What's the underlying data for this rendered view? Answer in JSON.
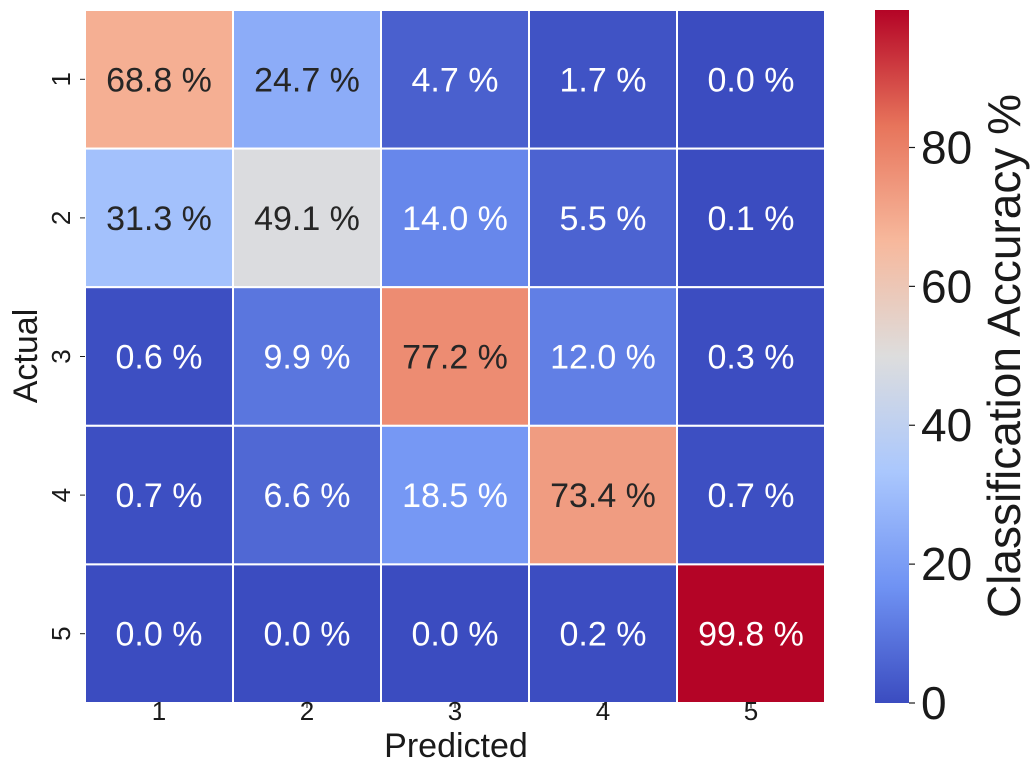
{
  "chart_data": {
    "type": "heatmap",
    "title": "",
    "xlabel": "Predicted",
    "ylabel": "Actual",
    "x_categories": [
      "1",
      "2",
      "3",
      "4",
      "5"
    ],
    "y_categories": [
      "1",
      "2",
      "3",
      "4",
      "5"
    ],
    "values": [
      [
        68.8,
        24.7,
        4.7,
        1.7,
        0.0
      ],
      [
        31.3,
        49.1,
        14.0,
        5.5,
        0.1
      ],
      [
        0.6,
        9.9,
        77.2,
        12.0,
        0.3
      ],
      [
        0.7,
        6.6,
        18.5,
        73.4,
        0.7
      ],
      [
        0.0,
        0.0,
        0.0,
        0.2,
        99.8
      ]
    ],
    "cell_labels": [
      [
        "68.8 %",
        "24.7 %",
        "4.7 %",
        "1.7 %",
        "0.0 %"
      ],
      [
        "31.3 %",
        "49.1 %",
        "14.0 %",
        "5.5 %",
        "0.1 %"
      ],
      [
        "0.6 %",
        "9.9 %",
        "77.2 %",
        "12.0 %",
        "0.3 %"
      ],
      [
        "0.7 %",
        "6.6 %",
        "18.5 %",
        "73.4 %",
        "0.7 %"
      ],
      [
        "0.0 %",
        "0.0 %",
        "0.0 %",
        "0.2 %",
        "99.8 %"
      ]
    ],
    "colormap": "coolwarm",
    "colormap_stops": [
      "#3b4cc0",
      "#6f92f3",
      "#aac7fd",
      "#dddddd",
      "#f7b89c",
      "#e7745b",
      "#b40426"
    ],
    "colorbar": {
      "label": "Classification Accuracy %",
      "range": [
        0,
        99.8
      ],
      "ticks": [
        0,
        20,
        40,
        60,
        80
      ],
      "tick_labels": [
        "0",
        "20",
        "40",
        "60",
        "80"
      ]
    },
    "grid": false,
    "cell_separator_color": "#ffffff",
    "annotation_colors": {
      "dark": "#262626",
      "light": "#ffffff"
    }
  }
}
